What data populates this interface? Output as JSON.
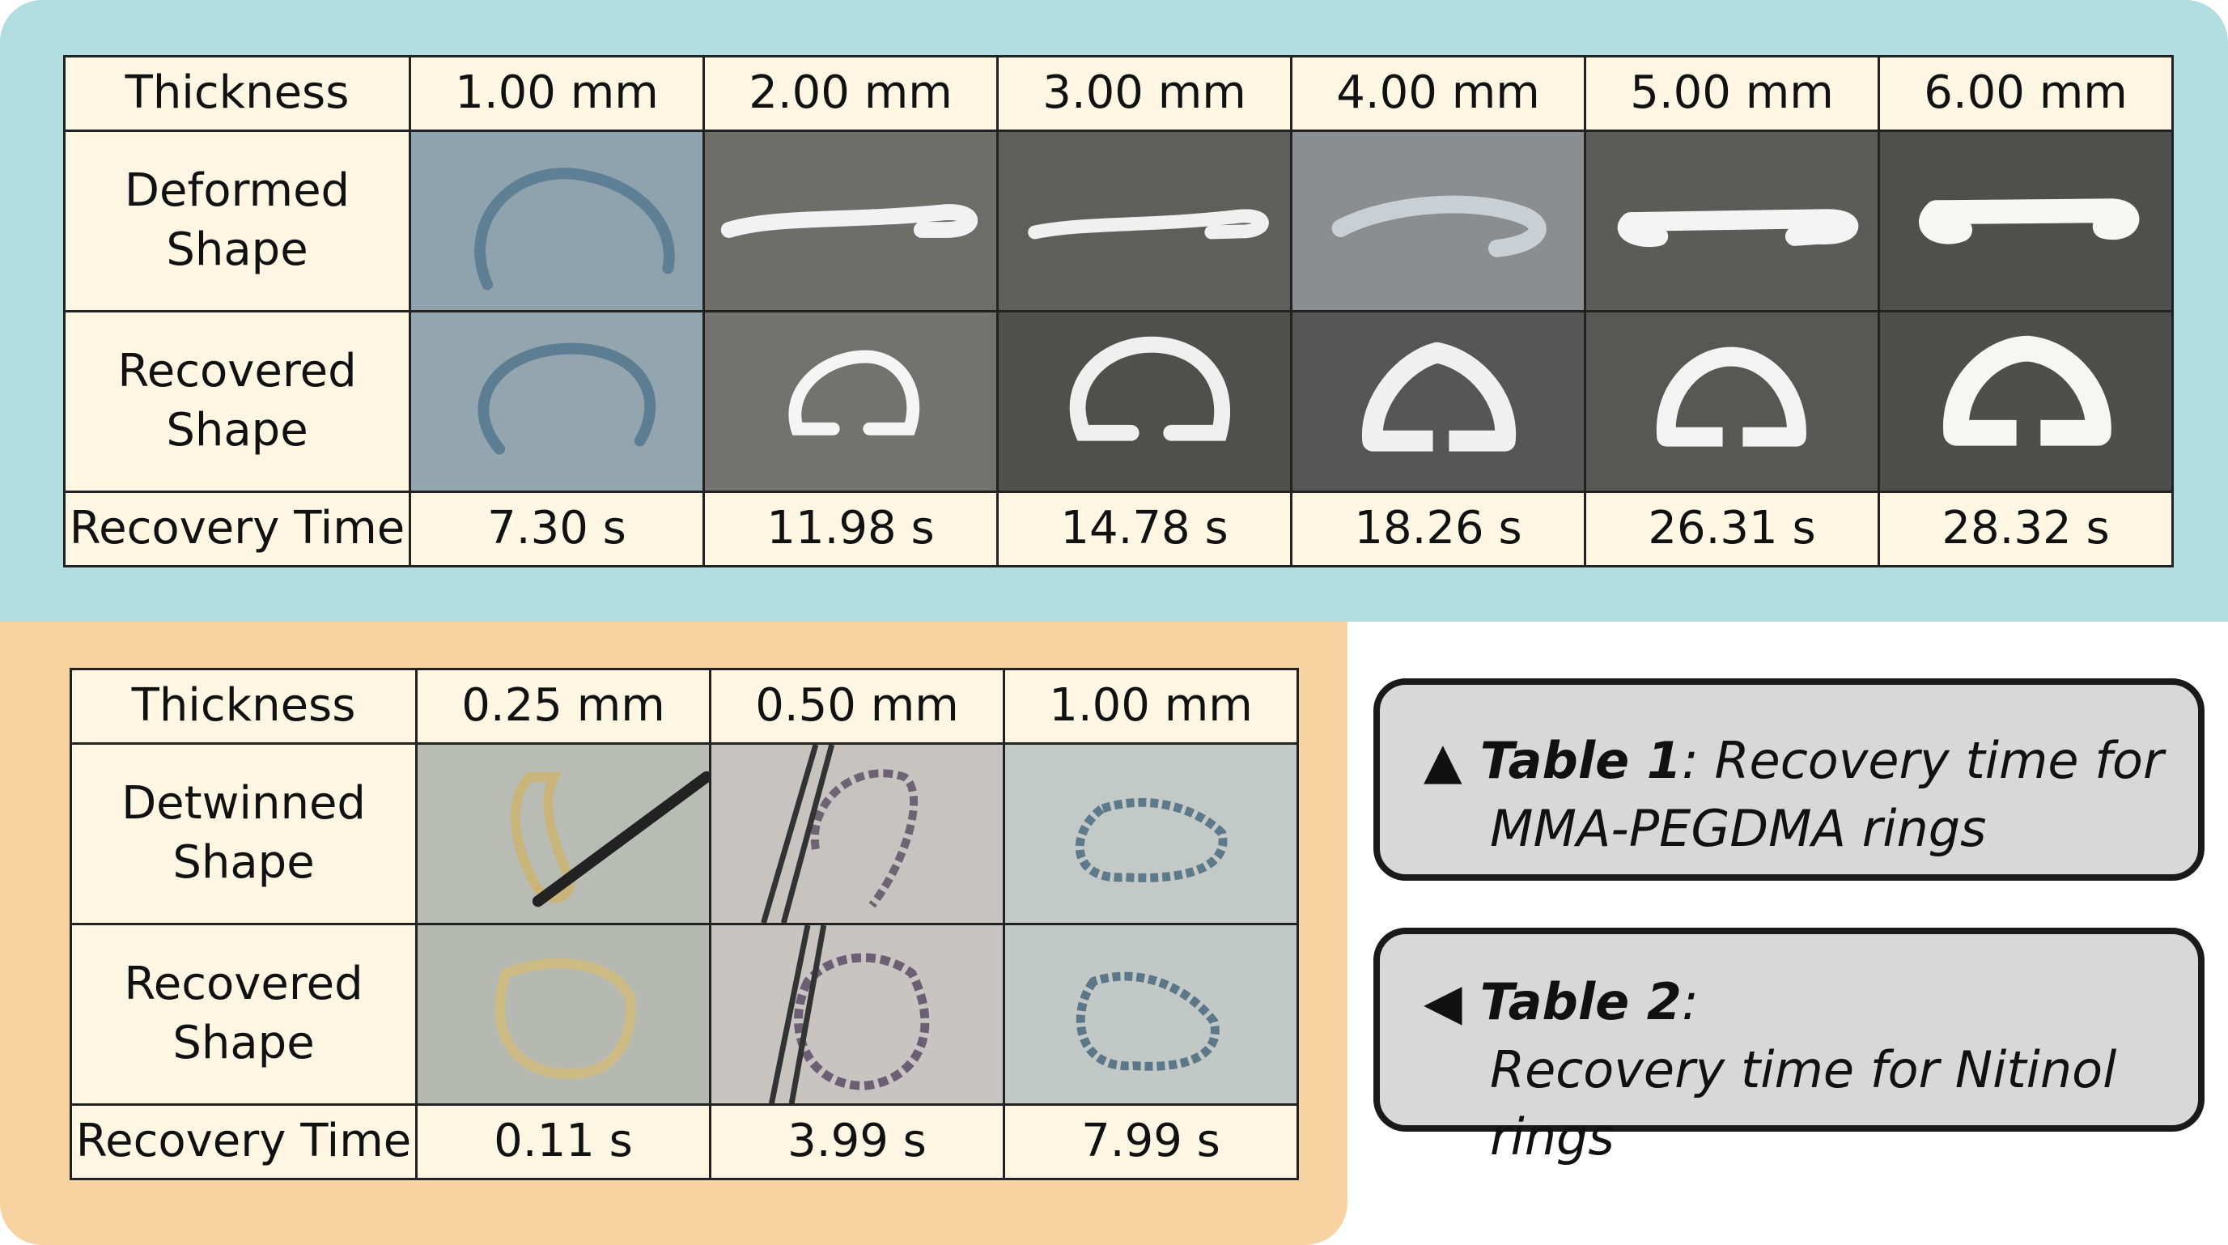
{
  "table1": {
    "header_label": "Thickness",
    "thickness": [
      "1.00 mm",
      "2.00 mm",
      "3.00 mm",
      "4.00 mm",
      "5.00 mm",
      "6.00 mm"
    ],
    "row1_label_line1": "Deformed",
    "row1_label_line2": "Shape",
    "row2_label_line1": "Recovered",
    "row2_label_line2": "Shape",
    "row3_label": "Recovery Time",
    "recovery_times": [
      "7.30 s",
      "11.98 s",
      "14.78 s",
      "18.26 s",
      "26.31 s",
      "28.32 s"
    ]
  },
  "table2": {
    "header_label": "Thickness",
    "thickness": [
      "0.25 mm",
      "0.50 mm",
      "1.00 mm"
    ],
    "row1_label_line1": "Detwinned",
    "row1_label_line2": "Shape",
    "row2_label_line1": "Recovered",
    "row2_label_line2": "Shape",
    "row3_label": "Recovery Time",
    "recovery_times": [
      "0.11 s",
      "3.99 s",
      "7.99 s"
    ]
  },
  "captions": {
    "cap1_marker": "▲",
    "cap1_title": "Table 1",
    "cap1_text_a": ": Recovery time for",
    "cap1_text_b": "MMA-PEGDMA rings",
    "cap2_marker": "◀",
    "cap2_title": "Table 2",
    "cap2_text_a": ":",
    "cap2_text_b": "Recovery time for Nitinol rings"
  },
  "colors": {
    "top_panel": "#b2dde1",
    "bottom_panel": "#f8d3a2",
    "cell_background": "#fdf6e3",
    "caption_box": "#d8d8d8"
  }
}
